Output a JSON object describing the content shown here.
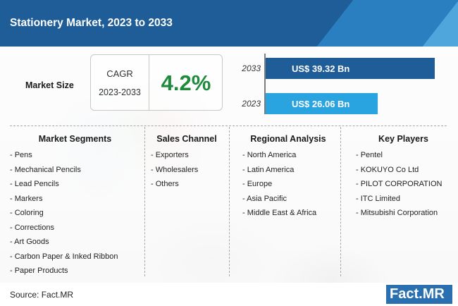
{
  "header": {
    "title": "Stationery Market, 2023 to 2033"
  },
  "market_size": {
    "label": "Market Size",
    "cagr_label": "CAGR",
    "cagr_period": "2023-2033",
    "cagr_value": "4.2%"
  },
  "chart_data": {
    "type": "bar",
    "orientation": "horizontal",
    "categories": [
      "2033",
      "2023"
    ],
    "values": [
      39.32,
      26.06
    ],
    "value_labels": [
      "US$ 39.32 Bn",
      "US$ 26.06 Bn"
    ],
    "unit": "US$ Bn",
    "colors": [
      "#1f5d99",
      "#2aa4e0"
    ]
  },
  "columns": [
    {
      "heading": "Market Segments",
      "items": [
        "- Pens",
        "- Mechanical Pencils",
        "- Lead Pencils",
        "- Markers",
        "- Coloring",
        "- Corrections",
        "- Art Goods",
        "- Carbon Paper & Inked Ribbon",
        "- Paper Products"
      ]
    },
    {
      "heading": "Sales Channel",
      "items": [
        "- Exporters",
        "- Wholesalers",
        "- Others"
      ]
    },
    {
      "heading": "Regional Analysis",
      "items": [
        "- North America",
        "- Latin America",
        "- Europe",
        "- Asia Pacific",
        "- Middle East & Africa"
      ]
    },
    {
      "heading": "Key Players",
      "items": [
        "- Pentel",
        "- KOKUYO Co Ltd",
        "- PILOT CORPORATION",
        "- ITC Limited",
        "- Mitsubishi Corporation"
      ]
    }
  ],
  "footer": {
    "source": "Source: Fact.MR",
    "logo_prefix": "Fact.",
    "logo_suffix": "MR"
  }
}
